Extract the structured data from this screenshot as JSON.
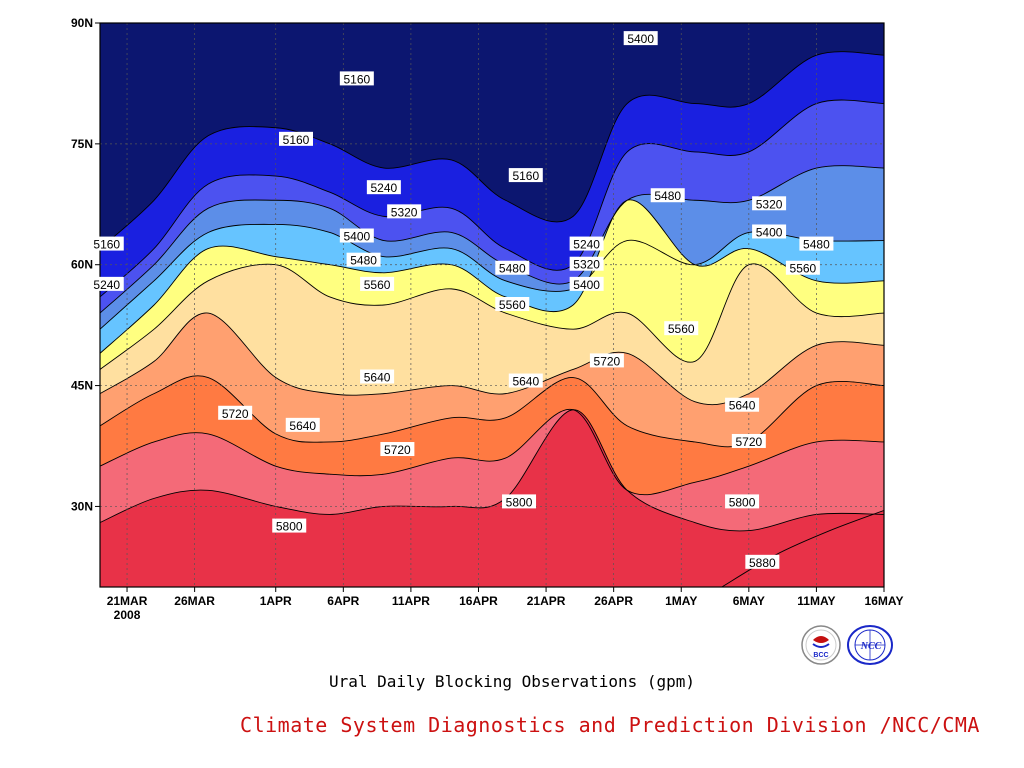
{
  "chart_data": {
    "type": "heatmap",
    "subtitle": "Ural Daily Blocking Observations (gpm)",
    "credit": "Climate System Diagnostics and Prediction Division /NCC/CMA",
    "year_label": "2008",
    "x_ticks": [
      "21MAR",
      "26MAR",
      "1APR",
      "6APR",
      "11APR",
      "16APR",
      "21APR",
      "26APR",
      "1MAY",
      "6MAY",
      "11MAY",
      "16MAY"
    ],
    "y_ticks": [
      "90N",
      "75N",
      "60N",
      "45N",
      "30N"
    ],
    "x_range": [
      "2008-03-19",
      "2008-05-16"
    ],
    "y_range": [
      20,
      90
    ],
    "grid": true,
    "contour_levels": [
      5160,
      5240,
      5320,
      5400,
      5480,
      5560,
      5640,
      5720,
      5800,
      5880
    ],
    "fill_colors": [
      "#0c1670",
      "#1a20e0",
      "#4c52f0",
      "#5c8ee8",
      "#66c4ff",
      "#ffff80",
      "#ffe0a0",
      "#ffa070",
      "#ff7a42",
      "#f46a78",
      "#e83248"
    ],
    "x_days": [
      0,
      4,
      8,
      13,
      17,
      21,
      26,
      30,
      35,
      39,
      44,
      48,
      53,
      58
    ],
    "isolines": [
      {
        "level": 5240,
        "lat": [
          56,
          62,
          70,
          71,
          69,
          66,
          67,
          62,
          60,
          74,
          74,
          74,
          80,
          80
        ]
      },
      {
        "level": 5320,
        "lat": [
          54,
          60,
          67,
          68,
          67,
          63,
          64,
          60,
          58,
          68,
          68,
          68,
          72,
          72
        ]
      },
      {
        "level": 5400,
        "lat": [
          52,
          58,
          64,
          65,
          64,
          61,
          62,
          58,
          57,
          63,
          60,
          64,
          63,
          63
        ]
      },
      {
        "level": 5480,
        "lat": [
          49,
          55,
          62,
          61,
          60,
          59,
          60,
          56,
          55,
          68,
          60,
          62,
          58,
          58
        ]
      },
      {
        "level": 5560,
        "lat": [
          47,
          52,
          58,
          60,
          56,
          55,
          57,
          54,
          52,
          54,
          48,
          60,
          54,
          54
        ]
      },
      {
        "level": 5640,
        "lat": [
          44,
          48,
          54,
          46,
          44,
          44,
          45,
          44,
          47,
          49,
          43,
          44,
          50,
          50
        ]
      },
      {
        "level": 5720,
        "lat": [
          40,
          44,
          46,
          39,
          38,
          39,
          41,
          41,
          46,
          40,
          38,
          38,
          45,
          45
        ]
      },
      {
        "level": 5800,
        "lat": [
          35,
          38,
          39,
          35,
          34,
          34,
          36,
          36,
          42,
          32,
          33,
          35,
          38,
          38
        ]
      },
      {
        "level": 5880,
        "lat": [
          28,
          31,
          32,
          30,
          29,
          30,
          30,
          31,
          42,
          32,
          28,
          27,
          29,
          29
        ]
      }
    ],
    "labels": [
      {
        "text": "5160",
        "day": 19,
        "lat": 83
      },
      {
        "text": "5160",
        "day": 14.5,
        "lat": 75.5
      },
      {
        "text": "5160",
        "day": 31.5,
        "lat": 71
      },
      {
        "text": "5160",
        "day": 0.5,
        "lat": 62.5
      },
      {
        "text": "5240",
        "day": 21,
        "lat": 69.5
      },
      {
        "text": "5240",
        "day": 36,
        "lat": 62.5
      },
      {
        "text": "5240",
        "day": 0.5,
        "lat": 57.5
      },
      {
        "text": "5320",
        "day": 22.5,
        "lat": 66.5
      },
      {
        "text": "5320",
        "day": 36,
        "lat": 60
      },
      {
        "text": "5320",
        "day": 49.5,
        "lat": 67.5
      },
      {
        "text": "5400",
        "day": 19,
        "lat": 63.5
      },
      {
        "text": "5400",
        "day": 36,
        "lat": 57.5
      },
      {
        "text": "5400",
        "day": 40,
        "lat": 88
      },
      {
        "text": "5400",
        "day": 49.5,
        "lat": 64
      },
      {
        "text": "5480",
        "day": 19.5,
        "lat": 60.5
      },
      {
        "text": "5480",
        "day": 30.5,
        "lat": 59.5
      },
      {
        "text": "5480",
        "day": 42,
        "lat": 68.5
      },
      {
        "text": "5480",
        "day": 53,
        "lat": 62.5
      },
      {
        "text": "5560",
        "day": 20.5,
        "lat": 57.5
      },
      {
        "text": "5560",
        "day": 30.5,
        "lat": 55
      },
      {
        "text": "5560",
        "day": 43,
        "lat": 52
      },
      {
        "text": "5560",
        "day": 52,
        "lat": 59.5
      },
      {
        "text": "5640",
        "day": 20.5,
        "lat": 46
      },
      {
        "text": "5640",
        "day": 31.5,
        "lat": 45.5
      },
      {
        "text": "5640",
        "day": 47.5,
        "lat": 42.5
      },
      {
        "text": "5640",
        "day": 15,
        "lat": 40
      },
      {
        "text": "5720",
        "day": 10,
        "lat": 41.5
      },
      {
        "text": "5720",
        "day": 22,
        "lat": 37
      },
      {
        "text": "5720",
        "day": 37.5,
        "lat": 48
      },
      {
        "text": "5720",
        "day": 48,
        "lat": 38
      },
      {
        "text": "5800",
        "day": 14,
        "lat": 27.5
      },
      {
        "text": "5800",
        "day": 31,
        "lat": 30.5
      },
      {
        "text": "5800",
        "day": 47.5,
        "lat": 30.5
      },
      {
        "text": "5880",
        "day": 49,
        "lat": 23
      }
    ]
  },
  "logos": [
    {
      "name": "bcc-logo",
      "text": "BCC",
      "color": "#c41010"
    },
    {
      "name": "ncc-logo",
      "text": "NCC",
      "color": "#1a28c8"
    }
  ]
}
